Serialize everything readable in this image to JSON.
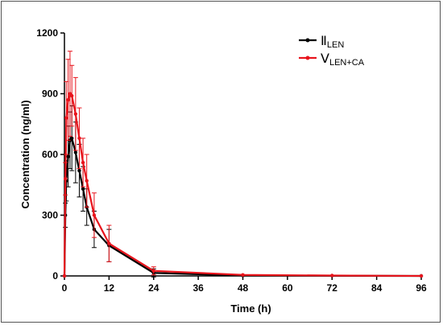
{
  "chart_data": {
    "type": "line",
    "title": "",
    "xlabel": "Time (h)",
    "ylabel": "Concentration (ng/ml)",
    "xlim": [
      0,
      96
    ],
    "ylim": [
      0,
      1200
    ],
    "xticks": [
      0,
      12,
      24,
      36,
      48,
      60,
      72,
      84,
      96
    ],
    "yticks": [
      0,
      300,
      600,
      900,
      1200
    ],
    "grid": false,
    "legend_position": "top-right",
    "series": [
      {
        "name_main": "Ⅱ",
        "name_sub": "LEN",
        "color": "#000000",
        "x": [
          0,
          0.25,
          0.5,
          1,
          1.5,
          2,
          3,
          4,
          5,
          6,
          8,
          12,
          24,
          48,
          72,
          96
        ],
        "y": [
          0,
          300,
          470,
          590,
          670,
          680,
          610,
          520,
          430,
          340,
          230,
          150,
          15,
          2,
          1,
          0
        ],
        "err": [
          0,
          60,
          100,
          150,
          140,
          160,
          150,
          130,
          110,
          90,
          90,
          80,
          20,
          0,
          0,
          0
        ]
      },
      {
        "name_main": "Ⅴ",
        "name_sub": "LEN+CA",
        "color": "#e8141c",
        "x": [
          0,
          0.25,
          0.5,
          1,
          1.5,
          2,
          3,
          4,
          5,
          6,
          8,
          12,
          24,
          48,
          72,
          96
        ],
        "y": [
          0,
          480,
          780,
          870,
          900,
          890,
          800,
          680,
          560,
          470,
          300,
          160,
          25,
          5,
          2,
          0
        ],
        "err": [
          0,
          80,
          180,
          200,
          210,
          150,
          180,
          150,
          120,
          130,
          110,
          90,
          20,
          0,
          0,
          0
        ]
      }
    ]
  }
}
